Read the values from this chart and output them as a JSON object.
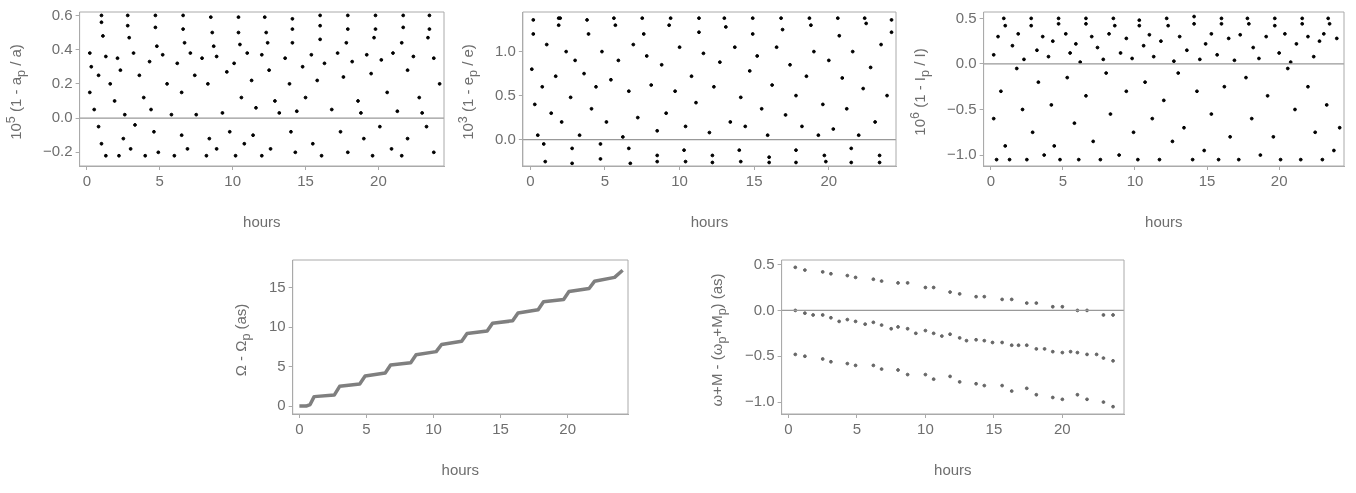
{
  "chart_data": [
    {
      "type": "scatter",
      "xlabel": "hours",
      "ylabel": "10$^{5}$ (1 - a$_{p}$ / a)",
      "color": "#000000",
      "marker": "circle",
      "xlim": [
        -0.5,
        24.5
      ],
      "ylim": [
        -0.28,
        0.62
      ],
      "xticks": [
        0,
        5,
        10,
        15,
        20
      ],
      "yticks": [
        {
          "value": -0.2,
          "label": "−0.2"
        },
        {
          "value": 0,
          "label": "0.0"
        },
        0.2,
        0.4,
        0.6
      ],
      "ref_lines": [
        {
          "axis": "y",
          "value": 0,
          "color": "#999999"
        }
      ],
      "x": [
        1,
        1,
        1.1,
        2.8,
        2.8,
        2.9,
        4.7,
        4.7,
        4.8,
        6.6,
        6.6,
        6.7,
        8.5,
        8.6,
        8.7,
        10.4,
        10.4,
        10.5,
        12.2,
        12.3,
        12.4,
        14.1,
        14.1,
        14.1,
        16,
        16,
        16,
        17.9,
        17.9,
        17.8,
        19.8,
        19.8,
        19.7,
        21.7,
        21.7,
        21.6,
        23.5,
        23.5,
        23.4,
        0.2,
        0.3,
        0.2,
        0.5,
        0.8,
        1.3,
        1.6,
        1.9,
        2.1,
        2.3,
        2.6,
        3.2,
        3.6,
        3.9,
        4.3,
        4.4,
        5.2,
        5.5,
        5.8,
        6.2,
        6.5,
        7.1,
        7.4,
        7.5,
        7.9,
        8.3,
        8.9,
        9.3,
        9.6,
        10.1,
        10.6,
        11,
        11.3,
        11.6,
        12,
        12.5,
        12.9,
        13.2,
        13.6,
        13.9,
        14.4,
        14.8,
        15,
        15.4,
        15.8,
        16.3,
        16.8,
        17.2,
        17.6,
        18.2,
        18.6,
        18.8,
        19.2,
        19.5,
        20.2,
        20.6,
        21,
        21.3,
        22,
        22.4,
        22.8,
        23,
        23.8,
        24.2,
        0.8,
        1,
        1.3,
        2.2,
        2.5,
        3,
        3.3,
        4,
        4.6,
        4.9,
        6,
        6.5,
        6.9,
        8.2,
        8.4,
        8.9,
        9.8,
        10.2,
        10.8,
        11.4,
        12,
        12.6,
        14,
        14.3,
        15.5,
        16.1,
        17.4,
        17.9,
        19,
        19.6,
        20.1,
        20.9,
        21.6,
        22,
        23.3,
        23.8
      ],
      "values": [
        0.6,
        0.56,
        0.48,
        0.6,
        0.54,
        0.47,
        0.6,
        0.53,
        0.42,
        0.6,
        0.52,
        0.44,
        0.59,
        0.5,
        0.42,
        0.59,
        0.5,
        0.43,
        0.59,
        0.5,
        0.44,
        0.58,
        0.52,
        0.44,
        0.6,
        0.54,
        0.46,
        0.6,
        0.52,
        0.44,
        0.6,
        0.52,
        0.47,
        0.6,
        0.53,
        0.44,
        0.6,
        0.52,
        0.47,
        0.38,
        0.3,
        0.15,
        0.05,
        0.25,
        0.36,
        0.2,
        0.1,
        0.35,
        0.28,
        0.02,
        0.38,
        0.25,
        0.12,
        0.33,
        0.05,
        0.37,
        0.2,
        0.02,
        0.32,
        0.15,
        0.38,
        0.25,
        0.02,
        0.35,
        0.2,
        0.36,
        0.03,
        0.27,
        0.32,
        0.12,
        0.38,
        0.22,
        0.06,
        0.37,
        0.28,
        0.1,
        0.03,
        0.35,
        0.2,
        0.04,
        0.3,
        0.12,
        0.37,
        0.22,
        0.32,
        0.05,
        0.38,
        0.24,
        0.33,
        0.1,
        0.03,
        0.37,
        0.26,
        0.34,
        0.15,
        0.38,
        0.04,
        0.28,
        0.36,
        0.12,
        0.03,
        0.35,
        0.2,
        -0.05,
        -0.15,
        -0.22,
        -0.22,
        -0.12,
        -0.18,
        -0.04,
        -0.22,
        -0.08,
        -0.2,
        -0.22,
        -0.1,
        -0.18,
        -0.22,
        -0.12,
        -0.18,
        -0.08,
        -0.22,
        -0.15,
        -0.1,
        -0.22,
        -0.18,
        -0.08,
        -0.2,
        -0.15,
        -0.22,
        -0.08,
        -0.2,
        -0.12,
        -0.22,
        -0.05,
        -0.18,
        -0.22,
        -0.12,
        -0.05,
        -0.2
      ]
    },
    {
      "type": "scatter",
      "xlabel": "hours",
      "ylabel": "10$^{3}$ (1 - e$_{p}$ / e)",
      "color": "#000000",
      "marker": "circle",
      "xlim": [
        -0.5,
        24.5
      ],
      "ylim": [
        -0.3,
        1.45
      ],
      "xticks": [
        0,
        5,
        10,
        15,
        20
      ],
      "yticks": [
        {
          "value": 0,
          "label": "0.0"
        },
        0.5,
        {
          "value": 1,
          "label": "1.0"
        }
      ],
      "ref_lines": [
        {
          "axis": "y",
          "value": 0,
          "color": "#999999"
        }
      ],
      "x": [
        0.2,
        0.2,
        1.9,
        1.9,
        2,
        3.8,
        3.9,
        5.6,
        5.7,
        7.5,
        7.6,
        9.4,
        9.3,
        11.3,
        11.3,
        13,
        13.1,
        14.9,
        14.9,
        16.8,
        16.9,
        18.7,
        18.8,
        20.6,
        20.7,
        22.4,
        22.5,
        24.2,
        24.2,
        0.1,
        0.3,
        0.5,
        0.8,
        1.1,
        1.4,
        1.7,
        2.1,
        2.4,
        2.7,
        3,
        3.3,
        3.6,
        4.1,
        4.4,
        4.8,
        5.1,
        5.4,
        5.9,
        6.2,
        6.6,
        6.9,
        7.2,
        7.8,
        8.1,
        8.5,
        8.8,
        9.1,
        9.7,
        10,
        10.4,
        10.8,
        11.1,
        11.6,
        12,
        12.3,
        12.7,
        13.4,
        13.7,
        14.1,
        14.4,
        14.7,
        15.2,
        15.5,
        15.9,
        16.2,
        16.5,
        17.1,
        17.4,
        17.8,
        18.2,
        18.5,
        19,
        19.3,
        19.6,
        20,
        20.3,
        20.9,
        21.2,
        21.6,
        22,
        22.3,
        22.8,
        23.1,
        23.5,
        23.9,
        0.9,
        1,
        2.8,
        2.8,
        4.7,
        4.7,
        6.6,
        6.7,
        8.5,
        8.5,
        10.3,
        10.4,
        12.2,
        12.2,
        14,
        14.1,
        16,
        16,
        17.8,
        17.8,
        19.7,
        19.8,
        21.5,
        21.5,
        23.4,
        23.4
      ],
      "values": [
        1.36,
        1.2,
        1.38,
        1.3,
        1.38,
        1.36,
        1.2,
        1.38,
        1.3,
        1.38,
        1.2,
        1.38,
        1.3,
        1.38,
        1.22,
        1.38,
        1.28,
        1.38,
        1.2,
        1.38,
        1.25,
        1.38,
        1.3,
        1.38,
        1.18,
        1.38,
        1.32,
        1.36,
        1.22,
        0.8,
        0.4,
        0.05,
        0.6,
        1.08,
        0.3,
        0.72,
        0.2,
        1.0,
        0.48,
        0.9,
        0.05,
        0.75,
        0.35,
        0.6,
        1.0,
        0.2,
        0.68,
        0.9,
        0.03,
        0.55,
        1.08,
        0.25,
        0.95,
        0.62,
        0.1,
        0.85,
        0.3,
        0.55,
        1.05,
        0.15,
        0.72,
        0.42,
        0.98,
        0.08,
        0.6,
        0.88,
        0.2,
        1.05,
        0.48,
        0.15,
        0.78,
        0.95,
        0.35,
        0.05,
        0.62,
        1.05,
        0.28,
        0.85,
        0.5,
        0.15,
        0.72,
        1.0,
        0.05,
        0.4,
        0.9,
        0.12,
        0.7,
        0.35,
        1.0,
        0.05,
        0.58,
        0.82,
        0.2,
        1.08,
        0.5,
        -0.05,
        -0.25,
        -0.1,
        -0.27,
        -0.05,
        -0.22,
        -0.1,
        -0.27,
        -0.18,
        -0.25,
        -0.12,
        -0.25,
        -0.18,
        -0.26,
        -0.12,
        -0.25,
        -0.2,
        -0.26,
        -0.12,
        -0.26,
        -0.18,
        -0.25,
        -0.1,
        -0.26,
        -0.18,
        -0.26
      ]
    },
    {
      "type": "scatter",
      "xlabel": "hours",
      "ylabel": "10$^{6}$ (1 - I$_{p}$ / I)",
      "color": "#000000",
      "marker": "circle",
      "xlim": [
        -0.5,
        24.5
      ],
      "ylim": [
        -1.12,
        0.57
      ],
      "xticks": [
        0,
        5,
        10,
        15,
        20
      ],
      "yticks": [
        {
          "value": -1,
          "label": "−1.0"
        },
        {
          "value": -0.5,
          "label": "−0.5"
        },
        {
          "value": 0,
          "label": "0.0"
        },
        0.5
      ],
      "ref_lines": [
        {
          "axis": "y",
          "value": 0,
          "color": "#999999"
        }
      ],
      "x": [
        0.9,
        1,
        2.8,
        2.8,
        4.7,
        4.7,
        6.6,
        6.6,
        8.5,
        8.6,
        10.3,
        10.3,
        12.2,
        12.3,
        14.1,
        14.1,
        16,
        16,
        17.8,
        17.9,
        19.7,
        19.7,
        21.6,
        21.6,
        23.4,
        23.5,
        0.2,
        0.5,
        1.5,
        1.9,
        2.3,
        3.2,
        3.6,
        4,
        4.3,
        5.2,
        5.5,
        5.9,
        6.2,
        7,
        7.4,
        7.8,
        8.2,
        9,
        9.4,
        9.8,
        10.6,
        11,
        11.3,
        11.8,
        12.7,
        13.1,
        13.6,
        14.5,
        14.9,
        15.3,
        15.7,
        16.5,
        16.9,
        17.3,
        18.2,
        18.6,
        19.1,
        20,
        20.4,
        20.8,
        21.2,
        22,
        22.4,
        22.8,
        23.1,
        24,
        0.2,
        0.4,
        0.7,
        1,
        1.3,
        1.8,
        2.2,
        2.5,
        2.9,
        3.3,
        3.7,
        4.2,
        4.4,
        4.8,
        5.3,
        5.8,
        6.1,
        6.6,
        7.1,
        7.6,
        8,
        8.3,
        8.9,
        9.4,
        9.9,
        10.2,
        10.7,
        11.2,
        11.7,
        12,
        12.6,
        13,
        13.4,
        14,
        14.3,
        14.8,
        15.3,
        15.8,
        16.2,
        16.6,
        17.2,
        17.7,
        18.1,
        18.7,
        19.2,
        19.6,
        20.1,
        20.6,
        21.1,
        21.5,
        22,
        22.5,
        23,
        23.3,
        23.8,
        24.2
      ],
      "values": [
        0.5,
        0.42,
        0.5,
        0.42,
        0.5,
        0.44,
        0.5,
        0.44,
        0.5,
        0.42,
        0.48,
        0.42,
        0.5,
        0.42,
        0.52,
        0.44,
        0.5,
        0.44,
        0.5,
        0.44,
        0.5,
        0.42,
        0.5,
        0.44,
        0.5,
        0.44,
        0.1,
        0.3,
        0.2,
        0.33,
        0.05,
        0.15,
        0.3,
        0.08,
        0.25,
        0.33,
        0.12,
        0.22,
        0.02,
        0.3,
        0.18,
        0.05,
        0.33,
        0.12,
        0.28,
        0.06,
        0.2,
        0.32,
        0.08,
        0.25,
        0.03,
        0.3,
        0.15,
        0.05,
        0.22,
        0.33,
        0.1,
        0.28,
        0.04,
        0.32,
        0.18,
        0.06,
        0.3,
        0.12,
        0.33,
        0.02,
        0.22,
        0.3,
        0.08,
        0.25,
        0.33,
        0.28,
        -0.6,
        -1.05,
        -0.3,
        -0.9,
        -1.05,
        -0.05,
        -0.5,
        -1.05,
        -0.75,
        -0.2,
        -1.0,
        -0.45,
        -0.9,
        -1.05,
        -0.15,
        -0.65,
        -1.05,
        -0.35,
        -0.85,
        -1.05,
        -0.1,
        -0.55,
        -1.0,
        -0.3,
        -0.75,
        -1.05,
        -0.2,
        -0.6,
        -1.05,
        -0.4,
        -0.85,
        -0.1,
        -0.7,
        -1.05,
        -0.3,
        -0.95,
        -0.55,
        -1.05,
        -0.25,
        -0.8,
        -1.05,
        -0.15,
        -0.6,
        -1.0,
        -0.35,
        -0.8,
        -1.05,
        -0.05,
        -0.5,
        -1.05,
        -0.25,
        -0.75,
        -1.05,
        -0.45,
        -0.95,
        -0.7
      ]
    },
    {
      "type": "line",
      "xlabel": "hours",
      "ylabel": "Ω - Ω$_{p}$ (as)",
      "color": "#7f7f7f",
      "marker": "none",
      "xlim": [
        -0.5,
        24.5
      ],
      "ylim": [
        -1,
        18.5
      ],
      "xticks": [
        0,
        5,
        10,
        15,
        20
      ],
      "yticks": [
        0,
        5,
        10,
        15
      ],
      "x": [
        0,
        0.5,
        0.8,
        1.1,
        2.6,
        3,
        4.5,
        4.9,
        6.4,
        6.8,
        8.3,
        8.7,
        10.2,
        10.6,
        12.1,
        12.5,
        14,
        14.4,
        15.9,
        16.3,
        17.8,
        18.2,
        19.7,
        20.1,
        21.6,
        22,
        23.5,
        24.1
      ],
      "values": [
        0,
        0,
        0.2,
        1.2,
        1.4,
        2.5,
        2.8,
        3.8,
        4.2,
        5.2,
        5.5,
        6.5,
        6.9,
        7.8,
        8.2,
        9.2,
        9.5,
        10.5,
        10.8,
        11.8,
        12.2,
        13.2,
        13.5,
        14.5,
        14.9,
        15.8,
        16.3,
        17.2
      ]
    },
    {
      "type": "scatter",
      "xlabel": "hours",
      "ylabel": "ω+M - (ω$_{p}$+M$_{p}$) (as)",
      "color": "#666666",
      "marker": "circle",
      "xlim": [
        -0.5,
        24.5
      ],
      "ylim": [
        -1.13,
        0.55
      ],
      "xticks": [
        0,
        5,
        10,
        15,
        20
      ],
      "yticks": [
        {
          "value": -1,
          "label": "−1.0"
        },
        {
          "value": -0.5,
          "label": "−0.5"
        },
        {
          "value": 0,
          "label": "0.0"
        },
        0.5
      ],
      "ref_lines": [
        {
          "axis": "y",
          "value": 0,
          "color": "#999999"
        }
      ],
      "x": [
        0.5,
        1.2,
        2.5,
        3.1,
        4.3,
        4.9,
        6.2,
        6.8,
        8.0,
        8.7,
        10.0,
        10.6,
        11.8,
        12.5,
        13.7,
        14.3,
        15.6,
        16.3,
        17.4,
        18.1,
        19.3,
        20.0,
        21.1,
        21.8,
        23.0,
        23.7,
        0.5,
        1.2,
        2.5,
        3.1,
        4.3,
        4.9,
        6.2,
        6.8,
        8.0,
        8.7,
        10.0,
        10.6,
        11.8,
        12.5,
        13.7,
        14.3,
        15.6,
        16.3,
        17.4,
        18.1,
        19.3,
        20.0,
        21.1,
        21.8,
        23.0,
        23.7,
        0.5,
        1.2,
        2.5,
        3.1,
        4.3,
        4.9,
        6.2,
        6.8,
        8.0,
        8.7,
        10.0,
        10.6,
        11.8,
        12.5,
        13.7,
        14.3,
        15.6,
        16.3,
        17.4,
        18.1,
        19.3,
        20.0,
        21.1,
        21.8,
        23.0,
        23.7,
        1.8,
        3.7,
        5.6,
        7.5,
        9.3,
        11.2,
        13,
        14.9,
        16.8,
        18.7,
        20.6,
        22.5
      ],
      "values": [
        0.47,
        0.44,
        0.42,
        0.4,
        0.38,
        0.36,
        0.34,
        0.32,
        0.3,
        0.3,
        0.25,
        0.25,
        0.2,
        0.18,
        0.15,
        0.15,
        0.12,
        0.12,
        0.08,
        0.08,
        0.04,
        0.04,
        0.0,
        0.0,
        -0.05,
        -0.05,
        0.0,
        -0.03,
        -0.05,
        -0.08,
        -0.1,
        -0.12,
        -0.13,
        -0.16,
        -0.18,
        -0.2,
        -0.22,
        -0.25,
        -0.26,
        -0.3,
        -0.32,
        -0.33,
        -0.35,
        -0.38,
        -0.38,
        -0.42,
        -0.45,
        -0.46,
        -0.46,
        -0.48,
        -0.52,
        -0.55,
        -0.48,
        -0.5,
        -0.53,
        -0.56,
        -0.58,
        -0.6,
        -0.6,
        -0.64,
        -0.65,
        -0.7,
        -0.7,
        -0.75,
        -0.72,
        -0.78,
        -0.8,
        -0.82,
        -0.82,
        -0.88,
        -0.85,
        -0.92,
        -0.95,
        -0.97,
        -0.92,
        -0.97,
        -1.0,
        -1.05,
        -0.05,
        -0.12,
        -0.15,
        -0.2,
        -0.25,
        -0.28,
        -0.33,
        -0.35,
        -0.38,
        -0.42,
        -0.45,
        -0.48
      ]
    }
  ]
}
